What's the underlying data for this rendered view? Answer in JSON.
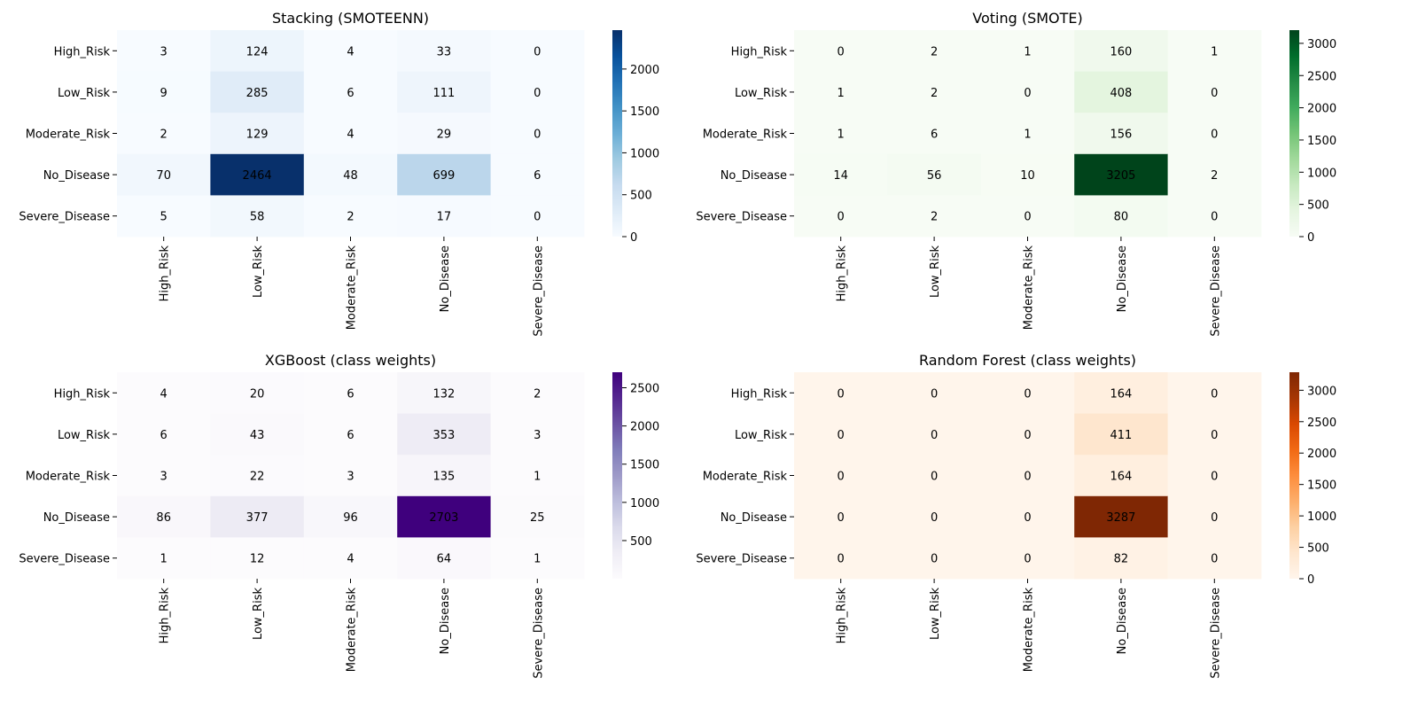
{
  "chart_data": [
    {
      "type": "heatmap",
      "title": "Stacking (SMOTEENN)",
      "rows": [
        "High_Risk",
        "Low_Risk",
        "Moderate_Risk",
        "No_Disease",
        "Severe_Disease"
      ],
      "cols": [
        "High_Risk",
        "Low_Risk",
        "Moderate_Risk",
        "No_Disease",
        "Severe_Disease"
      ],
      "values": [
        [
          3,
          124,
          4,
          33,
          0
        ],
        [
          9,
          285,
          6,
          111,
          0
        ],
        [
          2,
          129,
          4,
          29,
          0
        ],
        [
          70,
          2464,
          48,
          699,
          6
        ],
        [
          5,
          58,
          2,
          17,
          0
        ]
      ],
      "colormap": "Blues",
      "color_low": "#f7fbff",
      "color_high": "#08306b",
      "colorbar_ticks": [
        0,
        500,
        1000,
        1500,
        2000
      ],
      "vmin": 0,
      "vmax": 2464
    },
    {
      "type": "heatmap",
      "title": "Voting (SMOTE)",
      "rows": [
        "High_Risk",
        "Low_Risk",
        "Moderate_Risk",
        "No_Disease",
        "Severe_Disease"
      ],
      "cols": [
        "High_Risk",
        "Low_Risk",
        "Moderate_Risk",
        "No_Disease",
        "Severe_Disease"
      ],
      "values": [
        [
          0,
          2,
          1,
          160,
          1
        ],
        [
          1,
          2,
          0,
          408,
          0
        ],
        [
          1,
          6,
          1,
          156,
          0
        ],
        [
          14,
          56,
          10,
          3205,
          2
        ],
        [
          0,
          2,
          0,
          80,
          0
        ]
      ],
      "colormap": "Greens",
      "color_low": "#f7fcf5",
      "color_high": "#00441b",
      "colorbar_ticks": [
        0,
        500,
        1000,
        1500,
        2000,
        2500,
        3000
      ],
      "vmin": 0,
      "vmax": 3205
    },
    {
      "type": "heatmap",
      "title": "XGBoost (class weights)",
      "rows": [
        "High_Risk",
        "Low_Risk",
        "Moderate_Risk",
        "No_Disease",
        "Severe_Disease"
      ],
      "cols": [
        "High_Risk",
        "Low_Risk",
        "Moderate_Risk",
        "No_Disease",
        "Severe_Disease"
      ],
      "values": [
        [
          4,
          20,
          6,
          132,
          2
        ],
        [
          6,
          43,
          6,
          353,
          3
        ],
        [
          3,
          22,
          3,
          135,
          1
        ],
        [
          86,
          377,
          96,
          2703,
          25
        ],
        [
          1,
          12,
          4,
          64,
          1
        ]
      ],
      "colormap": "Purples",
      "color_low": "#fcfbfd",
      "color_high": "#3f007d",
      "colorbar_ticks": [
        500,
        1000,
        1500,
        2000,
        2500
      ],
      "vmin": 1,
      "vmax": 2703
    },
    {
      "type": "heatmap",
      "title": "Random Forest (class weights)",
      "rows": [
        "High_Risk",
        "Low_Risk",
        "Moderate_Risk",
        "No_Disease",
        "Severe_Disease"
      ],
      "cols": [
        "High_Risk",
        "Low_Risk",
        "Moderate_Risk",
        "No_Disease",
        "Severe_Disease"
      ],
      "values": [
        [
          0,
          0,
          0,
          164,
          0
        ],
        [
          0,
          0,
          0,
          411,
          0
        ],
        [
          0,
          0,
          0,
          164,
          0
        ],
        [
          0,
          0,
          0,
          3287,
          0
        ],
        [
          0,
          0,
          0,
          82,
          0
        ]
      ],
      "colormap": "Oranges",
      "color_low": "#fff5eb",
      "color_high": "#7f2704",
      "colorbar_ticks": [
        0,
        500,
        1000,
        1500,
        2000,
        2500,
        3000
      ],
      "vmin": 0,
      "vmax": 3287
    }
  ]
}
